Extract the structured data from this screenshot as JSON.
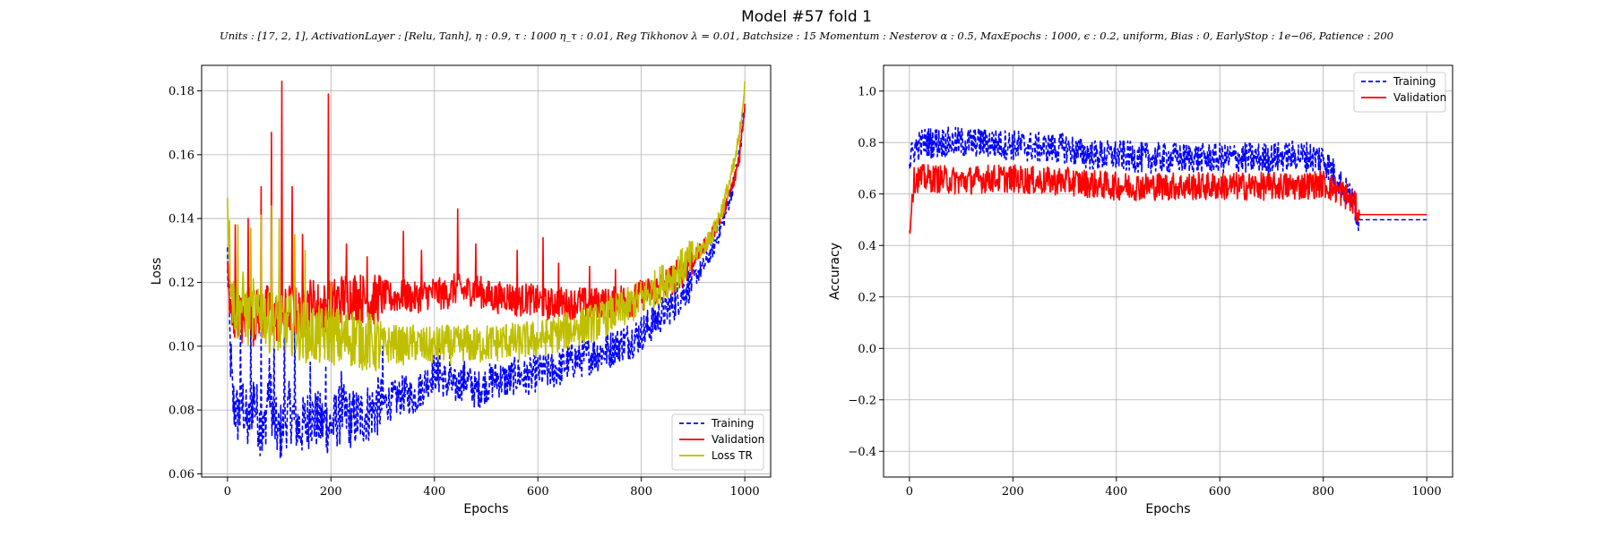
{
  "figure": {
    "title": "Model #57 fold 1",
    "subtitle": "Units : [17, 2, 1], ActivationLayer : [Relu, Tanh], η : 0.9, τ : 1000 η_τ : 0.01, Reg Tikhonov λ = 0.01, Batchsize : 15 Momentum : Nesterov α : 0.5, MaxEpochs : 1000, ϵ : 0.2, uniform, Bias : 0, EarlyStop : 1e−06, Patience : 200"
  },
  "chart_data": [
    {
      "type": "line",
      "xlabel": "Epochs",
      "ylabel": "Loss",
      "xlim": [
        -50,
        1050
      ],
      "ylim": [
        0.059,
        0.188
      ],
      "xticks": [
        0,
        200,
        400,
        600,
        800,
        1000
      ],
      "xtick_labels": [
        "0",
        "200",
        "400",
        "600",
        "800",
        "1000"
      ],
      "yticks": [
        0.06,
        0.08,
        0.1,
        0.12,
        0.14,
        0.16,
        0.18
      ],
      "ytick_labels": [
        "0.06",
        "0.08",
        "0.10",
        "0.12",
        "0.14",
        "0.16",
        "0.18"
      ],
      "grid": true,
      "legend_position": "bottom-right",
      "series": [
        {
          "name": "Training",
          "color": "#0000ff",
          "dash": "dashed",
          "x": [
            0,
            5,
            10,
            20,
            30,
            40,
            50,
            60,
            70,
            80,
            90,
            100,
            120,
            140,
            160,
            180,
            200,
            220,
            240,
            260,
            280,
            300,
            320,
            340,
            360,
            380,
            400,
            420,
            440,
            460,
            480,
            500,
            520,
            540,
            560,
            580,
            600,
            620,
            640,
            660,
            680,
            700,
            720,
            740,
            760,
            780,
            800,
            820,
            840,
            860,
            880,
            900,
            920,
            940,
            960,
            980,
            990,
            1000
          ],
          "y": [
            0.128,
            0.1,
            0.083,
            0.078,
            0.082,
            0.074,
            0.085,
            0.077,
            0.071,
            0.089,
            0.076,
            0.072,
            0.08,
            0.074,
            0.078,
            0.076,
            0.075,
            0.079,
            0.077,
            0.078,
            0.08,
            0.082,
            0.083,
            0.085,
            0.084,
            0.088,
            0.092,
            0.089,
            0.087,
            0.09,
            0.086,
            0.088,
            0.09,
            0.089,
            0.091,
            0.09,
            0.092,
            0.092,
            0.093,
            0.095,
            0.096,
            0.097,
            0.098,
            0.099,
            0.101,
            0.102,
            0.104,
            0.107,
            0.11,
            0.113,
            0.117,
            0.121,
            0.125,
            0.131,
            0.14,
            0.152,
            0.161,
            0.175
          ],
          "noise": 0.006,
          "spikes": [
            [
              25,
              0.105
            ],
            [
              45,
              0.108
            ],
            [
              65,
              0.106
            ],
            [
              90,
              0.109
            ],
            [
              110,
              0.11
            ],
            [
              130,
              0.108
            ],
            [
              160,
              0.095
            ],
            [
              190,
              0.094
            ],
            [
              220,
              0.092
            ],
            [
              300,
              0.1
            ],
            [
              410,
              0.101
            ],
            [
              430,
              0.099
            ]
          ]
        },
        {
          "name": "Validation",
          "color": "#ff0000",
          "dash": "solid",
          "x": [
            0,
            5,
            10,
            20,
            30,
            40,
            50,
            60,
            70,
            80,
            90,
            100,
            120,
            140,
            160,
            180,
            200,
            220,
            240,
            260,
            280,
            300,
            320,
            340,
            360,
            380,
            400,
            420,
            440,
            460,
            480,
            500,
            520,
            540,
            560,
            580,
            600,
            620,
            640,
            660,
            680,
            700,
            720,
            740,
            760,
            780,
            800,
            820,
            840,
            860,
            880,
            900,
            920,
            940,
            960,
            980,
            990,
            1000
          ],
          "y": [
            0.125,
            0.11,
            0.107,
            0.112,
            0.106,
            0.115,
            0.108,
            0.111,
            0.109,
            0.113,
            0.11,
            0.108,
            0.112,
            0.11,
            0.114,
            0.112,
            0.113,
            0.115,
            0.116,
            0.115,
            0.114,
            0.116,
            0.115,
            0.116,
            0.115,
            0.116,
            0.117,
            0.116,
            0.118,
            0.117,
            0.118,
            0.116,
            0.115,
            0.116,
            0.114,
            0.115,
            0.114,
            0.113,
            0.114,
            0.113,
            0.114,
            0.113,
            0.114,
            0.113,
            0.115,
            0.114,
            0.116,
            0.117,
            0.119,
            0.121,
            0.124,
            0.127,
            0.131,
            0.136,
            0.143,
            0.152,
            0.16,
            0.176
          ],
          "noise": 0.005,
          "spikes": [
            [
              15,
              0.138
            ],
            [
              40,
              0.14
            ],
            [
              65,
              0.15
            ],
            [
              85,
              0.167
            ],
            [
              105,
              0.183
            ],
            [
              125,
              0.15
            ],
            [
              145,
              0.135
            ],
            [
              195,
              0.179
            ],
            [
              230,
              0.132
            ],
            [
              270,
              0.128
            ],
            [
              340,
              0.136
            ],
            [
              375,
              0.13
            ],
            [
              445,
              0.143
            ],
            [
              480,
              0.132
            ],
            [
              560,
              0.13
            ],
            [
              610,
              0.134
            ],
            [
              640,
              0.126
            ],
            [
              700,
              0.125
            ],
            [
              750,
              0.124
            ]
          ]
        },
        {
          "name": "Loss TR",
          "color": "#bfbf00",
          "dash": "solid",
          "x": [
            0,
            5,
            10,
            20,
            30,
            40,
            50,
            60,
            70,
            80,
            90,
            100,
            120,
            140,
            160,
            180,
            200,
            220,
            240,
            260,
            280,
            300,
            320,
            340,
            360,
            380,
            400,
            420,
            440,
            460,
            480,
            500,
            520,
            540,
            560,
            580,
            600,
            620,
            640,
            660,
            680,
            700,
            720,
            740,
            760,
            780,
            800,
            820,
            840,
            860,
            880,
            900,
            920,
            940,
            960,
            980,
            990,
            1000
          ],
          "y": [
            0.146,
            0.128,
            0.115,
            0.11,
            0.114,
            0.108,
            0.112,
            0.108,
            0.111,
            0.107,
            0.109,
            0.106,
            0.107,
            0.105,
            0.104,
            0.103,
            0.104,
            0.102,
            0.103,
            0.102,
            0.101,
            0.1,
            0.101,
            0.1,
            0.101,
            0.1,
            0.1,
            0.101,
            0.1,
            0.101,
            0.1,
            0.101,
            0.101,
            0.102,
            0.101,
            0.102,
            0.102,
            0.103,
            0.104,
            0.105,
            0.106,
            0.107,
            0.108,
            0.11,
            0.111,
            0.113,
            0.115,
            0.117,
            0.12,
            0.122,
            0.125,
            0.128,
            0.131,
            0.136,
            0.145,
            0.157,
            0.166,
            0.183
          ],
          "noise": 0.006,
          "spikes": [
            [
              20,
              0.138
            ],
            [
              45,
              0.137
            ],
            [
              65,
              0.141
            ],
            [
              85,
              0.144
            ],
            [
              100,
              0.14
            ],
            [
              130,
              0.135
            ],
            [
              150,
              0.13
            ],
            [
              200,
              0.12
            ]
          ]
        }
      ]
    },
    {
      "type": "line",
      "xlabel": "Epochs",
      "ylabel": "Accuracy",
      "xlim": [
        -50,
        1050
      ],
      "ylim": [
        -0.5,
        1.1
      ],
      "xticks": [
        0,
        200,
        400,
        600,
        800,
        1000
      ],
      "xtick_labels": [
        "0",
        "200",
        "400",
        "600",
        "800",
        "1000"
      ],
      "yticks": [
        -0.4,
        -0.2,
        0.0,
        0.2,
        0.4,
        0.6,
        0.8,
        1.0
      ],
      "ytick_labels": [
        "−0.4",
        "−0.2",
        "0.0",
        "0.2",
        "0.4",
        "0.6",
        "0.8",
        "1.0"
      ],
      "grid": true,
      "legend_position": "top-right",
      "series": [
        {
          "name": "Training",
          "color": "#0000ff",
          "dash": "dashed",
          "x": [
            0,
            10,
            30,
            60,
            100,
            150,
            200,
            250,
            300,
            330,
            360,
            400,
            450,
            500,
            550,
            600,
            650,
            700,
            750,
            800,
            820,
            840,
            855,
            860,
            870,
            880,
            900,
            950,
            1000
          ],
          "y": [
            0.72,
            0.78,
            0.8,
            0.8,
            0.8,
            0.8,
            0.79,
            0.78,
            0.78,
            0.76,
            0.75,
            0.75,
            0.74,
            0.74,
            0.74,
            0.74,
            0.74,
            0.74,
            0.75,
            0.74,
            0.68,
            0.62,
            0.58,
            0.55,
            0.5,
            0.5,
            0.5,
            0.5,
            0.5
          ],
          "noise": 0.06,
          "noise_until": 870
        },
        {
          "name": "Validation",
          "color": "#ff0000",
          "dash": "solid",
          "x": [
            0,
            5,
            10,
            50,
            100,
            150,
            200,
            250,
            300,
            350,
            400,
            450,
            500,
            550,
            600,
            650,
            700,
            750,
            800,
            820,
            840,
            860,
            870,
            880,
            900,
            950,
            1000
          ],
          "y": [
            0.44,
            0.6,
            0.66,
            0.66,
            0.65,
            0.66,
            0.66,
            0.65,
            0.65,
            0.64,
            0.63,
            0.63,
            0.63,
            0.63,
            0.63,
            0.63,
            0.63,
            0.63,
            0.64,
            0.62,
            0.6,
            0.56,
            0.52,
            0.52,
            0.52,
            0.52,
            0.52
          ],
          "noise": 0.055,
          "noise_until": 870
        }
      ]
    }
  ]
}
